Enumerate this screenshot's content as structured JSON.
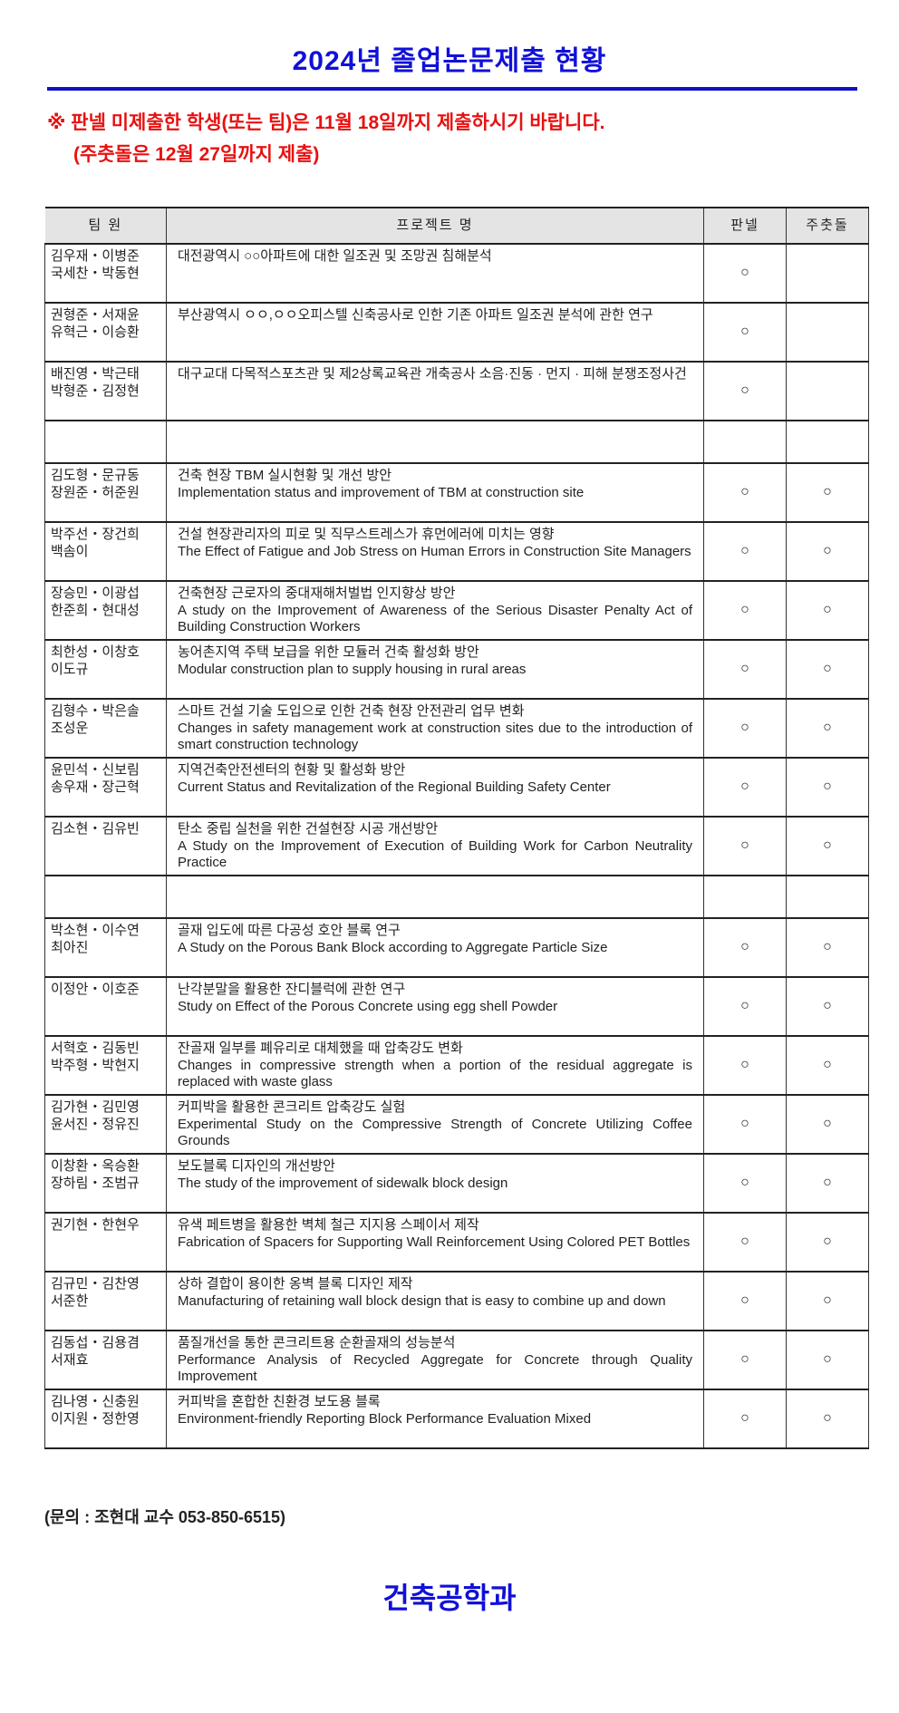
{
  "title": "2024년 졸업논문제출 현황",
  "notice": {
    "line1": "※ 판넬 미제출한 학생(또는 팀)은 11월 18일까지 제출하시기 바랍니다.",
    "line2": "(주춧돌은 12월 27일까지 제출)"
  },
  "table": {
    "headers": [
      "팀 원",
      "프로젝트 명",
      "판넬",
      "주춧돌"
    ],
    "rows": [
      {
        "team": "김우재・이병준\n국세찬・박동현",
        "kr": "대전광역시 ○○아파트에 대한 일조권 및 조망권 침해분석",
        "en": "",
        "panel": "○",
        "cornerstone": ""
      },
      {
        "team": "권형준・서재윤\n유혁근・이승환",
        "kr": "부산광역시 ㅇㅇ,ㅇㅇ오피스텔 신축공사로 인한 기존 아파트 일조권 분석에 관한 연구",
        "en": "",
        "panel": "○",
        "cornerstone": ""
      },
      {
        "team": "배진영・박근태\n박형준・김정현",
        "kr": "대구교대 다목적스포츠관 및 제2상록교육관 개축공사 소음·진동 · 먼지 · 피해 분쟁조정사건",
        "en": "",
        "panel": "○",
        "cornerstone": ""
      },
      {
        "team": "",
        "kr": "",
        "en": "",
        "panel": "",
        "cornerstone": "",
        "blank": true
      },
      {
        "team": "김도형・문규동\n장원준・허준원",
        "kr": "건축 현장 TBM 실시현황 및 개선 방안",
        "en": "Implementation status and improvement of TBM at construction site",
        "panel": "○",
        "cornerstone": "○"
      },
      {
        "team": "박주선・장건희\n백솜이",
        "kr": "건설 현장관리자의 피로 및 직무스트레스가 휴먼에러에 미치는 영향",
        "en": "The Effect of Fatigue and Job Stress on Human Errors in Construction Site Managers",
        "panel": "○",
        "cornerstone": "○"
      },
      {
        "team": "장승민・이광섭\n한준희・현대성",
        "kr": "건축현장 근로자의 중대재해처벌법 인지향상 방안",
        "en": "A study on the Improvement of Awareness of the Serious Disaster Penalty Act of Building Construction Workers",
        "panel": "○",
        "cornerstone": "○"
      },
      {
        "team": "최한성・이창호\n이도규",
        "kr": "농어촌지역 주택 보급을 위한 모듈러 건축 활성화 방안",
        "en": "Modular construction plan to supply housing in rural areas",
        "panel": "○",
        "cornerstone": "○"
      },
      {
        "team": "김형수・박은솔\n조성운",
        "kr": "스마트 건설 기술 도입으로 인한 건축 현장 안전관리 업무 변화",
        "en": "Changes in safety management work at construction sites due to the introduction of smart construction technology",
        "panel": "○",
        "cornerstone": "○"
      },
      {
        "team": "윤민석・신보림\n송우재・장근혁",
        "kr": "지역건축안전센터의 현황 및 활성화 방안",
        "en": "Current Status and Revitalization of the Regional Building Safety Center",
        "panel": "○",
        "cornerstone": "○"
      },
      {
        "team": "김소현・김유빈",
        "kr": "탄소 중립 실천을 위한 건설현장 시공 개선방안",
        "en": "A Study on the Improvement of Execution of Building Work for Carbon Neutrality Practice",
        "panel": "○",
        "cornerstone": "○"
      },
      {
        "team": "",
        "kr": "",
        "en": "",
        "panel": "",
        "cornerstone": "",
        "blank": true
      },
      {
        "team": "박소현・이수연\n최아진",
        "kr": "골재 입도에 따른 다공성 호안 블록 연구",
        "en": "A Study on the Porous Bank Block according to Aggregate Particle Size",
        "panel": "○",
        "cornerstone": "○"
      },
      {
        "team": "이정안・이호준",
        "kr": "난각분말을 활용한 잔디블럭에 관한 연구",
        "en": "Study on Effect of the Porous Concrete using egg shell Powder",
        "panel": "○",
        "cornerstone": "○"
      },
      {
        "team": "서혁호・김동빈\n박주형・박현지",
        "kr": "잔골재 일부를 폐유리로 대체했을 때 압축강도 변화",
        "en": "Changes in compressive strength when a portion of the residual aggregate is replaced with waste glass",
        "panel": "○",
        "cornerstone": "○"
      },
      {
        "team": "김가현・김민영\n윤서진・정유진",
        "kr": "커피박을 활용한 콘크리트 압축강도 실험",
        "en": "Experimental Study on the Compressive Strength of Concrete Utilizing Coffee Grounds",
        "panel": "○",
        "cornerstone": "○"
      },
      {
        "team": "이창환・옥승환\n장하림・조범규",
        "kr": "보도블록 디자인의 개선방안",
        "en": " The study of the improvement of sidewalk block design",
        "panel": "○",
        "cornerstone": "○"
      },
      {
        "team": "권기현・한현우",
        "kr": "유색 페트병을 활용한 벽체 철근 지지용 스페이서 제작",
        "en": "Fabrication of Spacers for Supporting Wall Reinforcement Using Colored PET Bottles",
        "panel": "○",
        "cornerstone": "○"
      },
      {
        "team": "김규민・김찬영\n서준한",
        "kr": "상하 결합이 용이한 옹벽 블록 디자인 제작",
        "en": "Manufacturing of retaining wall block design that is easy to combine up and down",
        "panel": "○",
        "cornerstone": "○"
      },
      {
        "team": "김동섭・김용겸\n서재효",
        "kr": "품질개선을 통한 콘크리트용 순환골재의 성능분석",
        "en": "Performance Analysis of Recycled Aggregate for Concrete through Quality Improvement",
        "panel": "○",
        "cornerstone": "○"
      },
      {
        "team": "김나영・신충원\n이지원・정한영",
        "kr": "커피박을 혼합한 친환경 보도용 블록",
        "en": "Environment-friendly Reporting Block Performance Evaluation Mixed",
        "panel": "○",
        "cornerstone": "○"
      }
    ]
  },
  "contact": "(문의 : 조현대 교수 053-850-6515)",
  "department": "건축공학과",
  "colors": {
    "title": "#1010d8",
    "notice": "#e81010",
    "header_bg": "#e4e4e4"
  }
}
